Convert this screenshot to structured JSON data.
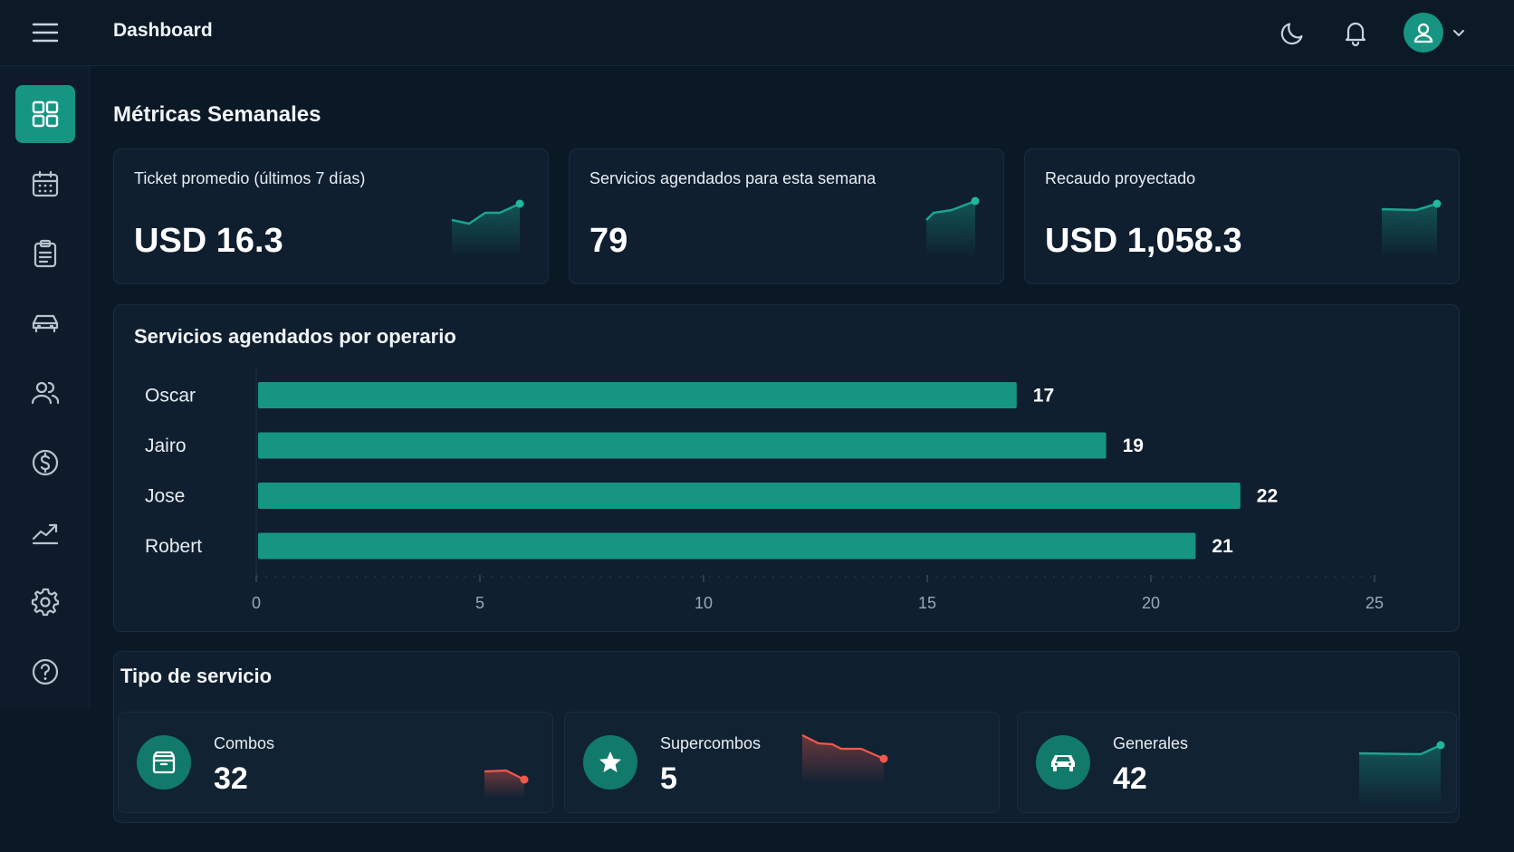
{
  "header": {
    "title": "Dashboard",
    "icons": [
      "menu-icon",
      "moon-icon",
      "bell-icon",
      "user-icon",
      "chevron-down-icon"
    ]
  },
  "sidebar": {
    "items": [
      {
        "name": "dashboard",
        "icon": "grid-icon",
        "active": true
      },
      {
        "name": "calendar",
        "icon": "calendar-icon"
      },
      {
        "name": "clipboard",
        "icon": "clipboard-icon"
      },
      {
        "name": "vehicles",
        "icon": "car-icon"
      },
      {
        "name": "users",
        "icon": "users-icon"
      },
      {
        "name": "payments",
        "icon": "dollar-icon"
      },
      {
        "name": "reports",
        "icon": "trend-icon"
      },
      {
        "name": "settings",
        "icon": "gear-icon"
      },
      {
        "name": "help",
        "icon": "help-icon"
      }
    ]
  },
  "metrics": {
    "title": "Métricas Semanales",
    "cards": [
      {
        "label": "Ticket promedio (últimos 7 días)",
        "value": "USD 16.3"
      },
      {
        "label": "Servicios agendados para esta semana",
        "value": "79"
      },
      {
        "label": "Recaudo proyectado",
        "value": "USD 1,058.3"
      }
    ]
  },
  "operators_chart": {
    "title": "Servicios agendados por operario"
  },
  "chart_data": {
    "type": "bar",
    "orientation": "horizontal",
    "title": "Servicios agendados por operario",
    "categories": [
      "Oscar",
      "Jairo",
      "Jose",
      "Robert"
    ],
    "values": [
      17,
      19,
      22,
      21
    ],
    "xlim": [
      0,
      25
    ],
    "xticks": [
      0,
      5,
      10,
      15,
      20,
      25
    ],
    "bar_color": "#169682",
    "grid": false
  },
  "service_types": {
    "title": "Tipo de servicio",
    "cards": [
      {
        "label": "Combos",
        "value": "32",
        "icon": "box-icon",
        "trend": "down"
      },
      {
        "label": "Supercombos",
        "value": "5",
        "icon": "star-icon",
        "trend": "down"
      },
      {
        "label": "Generales",
        "value": "42",
        "icon": "car-icon",
        "trend": "up"
      }
    ]
  },
  "colors": {
    "accent": "#169682",
    "background": "#0b1826",
    "card": "#0f1f30",
    "negative": "#f0584a"
  }
}
